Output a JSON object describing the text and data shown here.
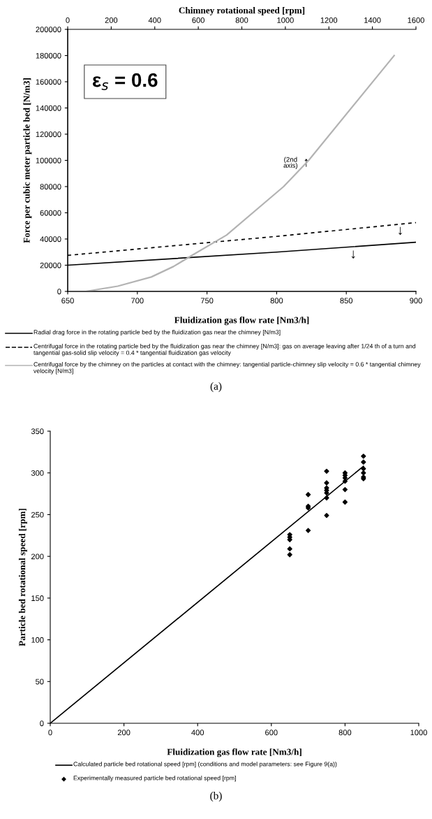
{
  "chart_data": [
    {
      "type": "line",
      "xlabel": "Fluidization gas flow rate [Nm3/h]",
      "ylabel": "Force per cubic meter particle bed [N/m3]",
      "x2label": "Chimney rotational speed [rpm]",
      "xlim": [
        650,
        900
      ],
      "xticks": [
        650,
        700,
        750,
        800,
        850,
        900
      ],
      "x2lim": [
        0,
        1600
      ],
      "x2ticks": [
        0,
        200,
        400,
        600,
        800,
        1000,
        1200,
        1400,
        1600
      ],
      "ylim": [
        0,
        200000
      ],
      "yticks": [
        0,
        20000,
        40000,
        60000,
        80000,
        100000,
        120000,
        140000,
        160000,
        180000,
        200000
      ],
      "grid": false,
      "legend": "bottom",
      "marker": "none",
      "series": [
        {
          "name": "Radial drag force in the rotating particle bed by the fluidization gas near the chimney [N/m3]",
          "color": "#000000",
          "line_style": "solid",
          "x": [
            650,
            800,
            900
          ],
          "values": [
            20000,
            30000,
            37500
          ]
        },
        {
          "name": "Centrifugal force in the rotating particle bed by the fluidization gas near the chimney [N/m3]: gas on average leaving after 1/24 th of a turn and tangential gas-solid slip velocity = 0.4 * tangential fluidization gas velocity",
          "color": "#000000",
          "line_style": "dashed",
          "x": [
            650,
            800,
            900
          ],
          "values": [
            27500,
            42000,
            52500
          ]
        },
        {
          "name": "Centrifugal force by the chimney on the particles at contact with the chimney: tangential particle-chimney slip velocity = 0.6 * tangential chimney velocity [N/m3]",
          "color": "#b3b3b3",
          "line_style": "solid",
          "axis": "x2",
          "x": [
            0,
            83,
            230,
            384,
            486,
            576,
            730,
            992,
            1107,
            1500
          ],
          "values": [
            0,
            0,
            4000,
            11000,
            19000,
            28000,
            43000,
            80000,
            100000,
            180000
          ]
        }
      ],
      "annotations": [
        "ε$_{s}$ = 0.6",
        "(2nd\naxis)",
        "↑",
        "↓",
        "↓",
        "(a)"
      ]
    },
    {
      "type": "line",
      "xlabel": "Fluidization gas flow rate [Nm3/h]",
      "ylabel": "Particle bed rotational speed [rpm]",
      "xlim": [
        0,
        1000
      ],
      "xticks": [
        0,
        200,
        400,
        600,
        800,
        1000
      ],
      "ylim": [
        0,
        350
      ],
      "yticks": [
        0,
        50,
        100,
        150,
        200,
        250,
        300,
        350
      ],
      "grid": false,
      "legend": "bottom",
      "series": [
        {
          "name": "Calculated particle bed rotational speed [rpm] (conditions and model parameters: see Figure 9(a))",
          "color": "#000000",
          "line_style": "solid",
          "x": [
            0,
            850
          ],
          "values": [
            0,
            308
          ]
        },
        {
          "name": "Experimentally measured particle bed rotational speed [rpm]",
          "type": "scatter",
          "marker": "diamond",
          "color": "#000000",
          "x": [
            650,
            650,
            650,
            650,
            650,
            700,
            700,
            700,
            700,
            750,
            750,
            750,
            750,
            750,
            750,
            750,
            800,
            800,
            800,
            800,
            800,
            800,
            850,
            850,
            850,
            850,
            850,
            850
          ],
          "values": [
            226,
            223,
            220,
            209,
            202,
            274,
            260,
            258,
            231,
            302,
            288,
            282,
            279,
            276,
            270,
            249,
            300,
            297,
            294,
            290,
            280,
            265,
            320,
            313,
            305,
            300,
            295,
            293
          ]
        }
      ],
      "annotations": [
        "(b)"
      ]
    }
  ]
}
